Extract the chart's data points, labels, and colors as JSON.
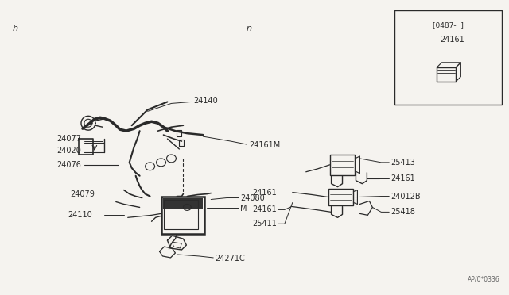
{
  "bg_color": "#f5f3ef",
  "line_color": "#2a2a2a",
  "text_color": "#2a2a2a",
  "section_h_label": "h",
  "section_n_label": "n",
  "inset_label": "[0487-  ]",
  "inset_part": "24161",
  "watermark": "AP/0*0336",
  "fig_width": 6.4,
  "fig_height": 3.72,
  "dpi": 100
}
